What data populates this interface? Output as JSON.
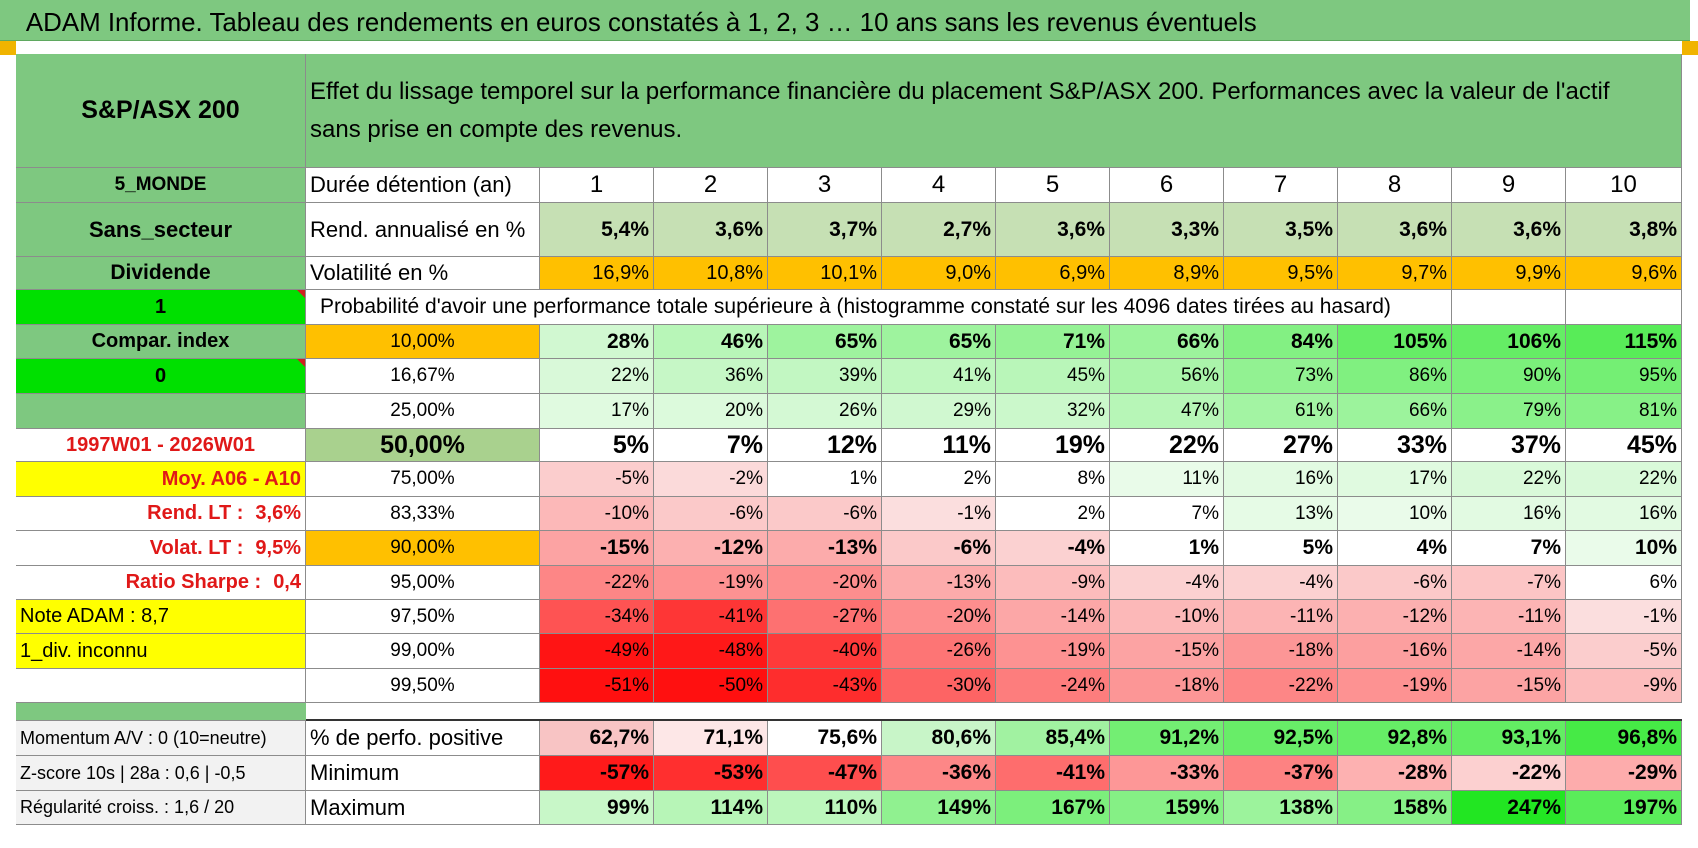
{
  "title": "ADAM Informe. Tableau des rendements en euros constatés à 1, 2, 3 … 10 ans sans les revenus éventuels",
  "header": {
    "index_name": "S&P/ASX 200",
    "description": "Effet du lissage temporel sur la performance financière du placement S&P/ASX 200. Performances avec la valeur de l'actif sans prise en compte des revenus."
  },
  "left": {
    "region": "5_MONDE",
    "sector": "Sans_secteur",
    "dividend": "Dividende",
    "dividend_flag": "1",
    "compar_index": "Compar. index",
    "compar_flag": "0",
    "period": "1997W01 - 2026W01",
    "moy": "Moy. A06 - A10",
    "rend_label": "Rend. LT :",
    "rend_value": "3,6%",
    "volat_label": "Volat. LT :",
    "volat_value": "9,5%",
    "sharpe_label": "Ratio Sharpe :",
    "sharpe_value": "0,4",
    "note": "Note ADAM : 8,7",
    "div": "1_div. inconnu"
  },
  "labels": {
    "duration": "Durée détention (an)",
    "rend": "Rend. annualisé en %",
    "vol": "Volatilité en %",
    "prob": "Probabilité d'avoir une performance totale supérieure à (histogramme constaté sur les 4096 dates tirées au hasard)"
  },
  "years": [
    "1",
    "2",
    "3",
    "4",
    "5",
    "6",
    "7",
    "8",
    "9",
    "10"
  ],
  "rend": [
    "5,4%",
    "3,6%",
    "3,7%",
    "2,7%",
    "3,6%",
    "3,3%",
    "3,5%",
    "3,6%",
    "3,6%",
    "3,8%"
  ],
  "vol": [
    "16,9%",
    "10,8%",
    "10,1%",
    "9,0%",
    "6,9%",
    "8,9%",
    "9,5%",
    "9,7%",
    "9,9%",
    "9,6%"
  ],
  "quantiles": [
    {
      "p": "10,00%",
      "v": [
        "28%",
        "46%",
        "65%",
        "65%",
        "71%",
        "66%",
        "84%",
        "105%",
        "106%",
        "115%"
      ]
    },
    {
      "p": "16,67%",
      "v": [
        "22%",
        "36%",
        "39%",
        "41%",
        "45%",
        "56%",
        "73%",
        "86%",
        "90%",
        "95%"
      ]
    },
    {
      "p": "25,00%",
      "v": [
        "17%",
        "20%",
        "26%",
        "29%",
        "32%",
        "47%",
        "61%",
        "66%",
        "79%",
        "81%"
      ]
    },
    {
      "p": "50,00%",
      "v": [
        "5%",
        "7%",
        "12%",
        "11%",
        "19%",
        "22%",
        "27%",
        "33%",
        "37%",
        "45%"
      ]
    },
    {
      "p": "75,00%",
      "v": [
        "-5%",
        "-2%",
        "1%",
        "2%",
        "8%",
        "11%",
        "16%",
        "17%",
        "22%",
        "22%"
      ]
    },
    {
      "p": "83,33%",
      "v": [
        "-10%",
        "-6%",
        "-6%",
        "-1%",
        "2%",
        "7%",
        "13%",
        "10%",
        "16%",
        "16%"
      ]
    },
    {
      "p": "90,00%",
      "v": [
        "-15%",
        "-12%",
        "-13%",
        "-6%",
        "-4%",
        "1%",
        "5%",
        "4%",
        "7%",
        "10%"
      ]
    },
    {
      "p": "95,00%",
      "v": [
        "-22%",
        "-19%",
        "-20%",
        "-13%",
        "-9%",
        "-4%",
        "-4%",
        "-6%",
        "-7%",
        "6%"
      ]
    },
    {
      "p": "97,50%",
      "v": [
        "-34%",
        "-41%",
        "-27%",
        "-20%",
        "-14%",
        "-10%",
        "-11%",
        "-12%",
        "-11%",
        "-1%"
      ]
    },
    {
      "p": "99,00%",
      "v": [
        "-49%",
        "-48%",
        "-40%",
        "-26%",
        "-19%",
        "-15%",
        "-18%",
        "-16%",
        "-14%",
        "-5%"
      ]
    },
    {
      "p": "99,50%",
      "v": [
        "-51%",
        "-50%",
        "-43%",
        "-30%",
        "-24%",
        "-18%",
        "-22%",
        "-19%",
        "-15%",
        "-9%"
      ]
    }
  ],
  "bottom": [
    {
      "left": "Momentum A/V : 0 (10=neutre)",
      "label": "% de perfo. positive",
      "v": [
        "62,7%",
        "71,1%",
        "75,6%",
        "80,6%",
        "85,4%",
        "91,2%",
        "92,5%",
        "92,8%",
        "93,1%",
        "96,8%"
      ]
    },
    {
      "left": "Z-score 10s | 28a : 0,6 | -0,5",
      "label": "Minimum",
      "v": [
        "-57%",
        "-53%",
        "-47%",
        "-36%",
        "-41%",
        "-33%",
        "-37%",
        "-28%",
        "-22%",
        "-29%"
      ]
    },
    {
      "left": "Régularité croiss. : 1,6 / 20",
      "label": "Maximum",
      "v": [
        "99%",
        "114%",
        "110%",
        "149%",
        "167%",
        "159%",
        "138%",
        "158%",
        "247%",
        "197%"
      ]
    }
  ],
  "colors": {
    "header_green": "#7ec880",
    "light_green": "#c6e0b4",
    "bright_green": "#00e000",
    "orange": "#ffc000",
    "yellow": "#ffff00",
    "median_green": "#a9d18e",
    "grey": "#f2f2f2"
  }
}
